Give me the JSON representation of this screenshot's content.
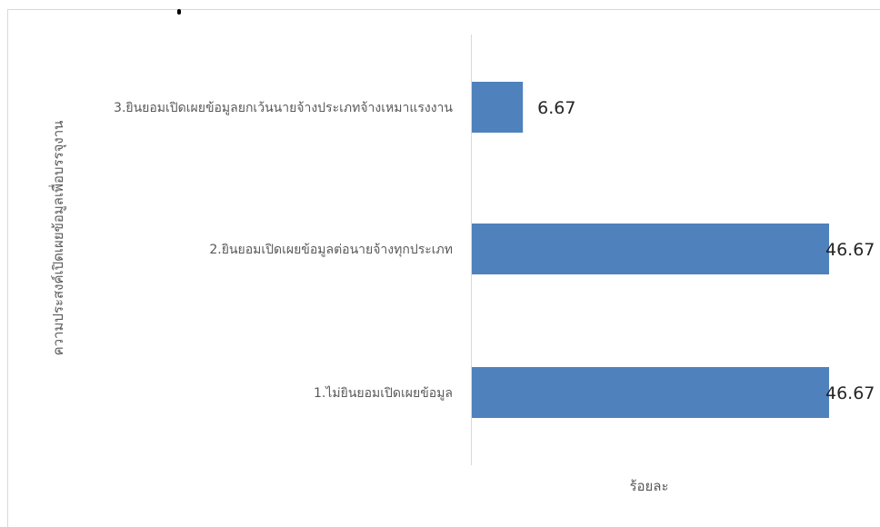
{
  "chart_data": {
    "type": "bar",
    "orientation": "horizontal",
    "categories": [
      "1.ไม่ยินยอมเปิดเผยข้อมูล",
      "2.ยินยอมเปิดเผยข้อมูลต่อนายจ้างทุกประเภท",
      "3.ยินยอมเปิดเผยข้อมูลยกเว้นนายจ้างประเภทจ้างเหมาแรงงาน"
    ],
    "values": [
      46.67,
      46.67,
      6.67
    ],
    "data_labels": [
      "46.67",
      "46.67",
      "6.67"
    ],
    "xlabel": "ร้อยละ",
    "ylabel": "ความประสงค์เปิดเผยข้อมูลเพื่อบรรจุงาน",
    "xlim": [
      0,
      50
    ],
    "bar_color": "#4f81bd",
    "grid": false,
    "legend": "none"
  }
}
